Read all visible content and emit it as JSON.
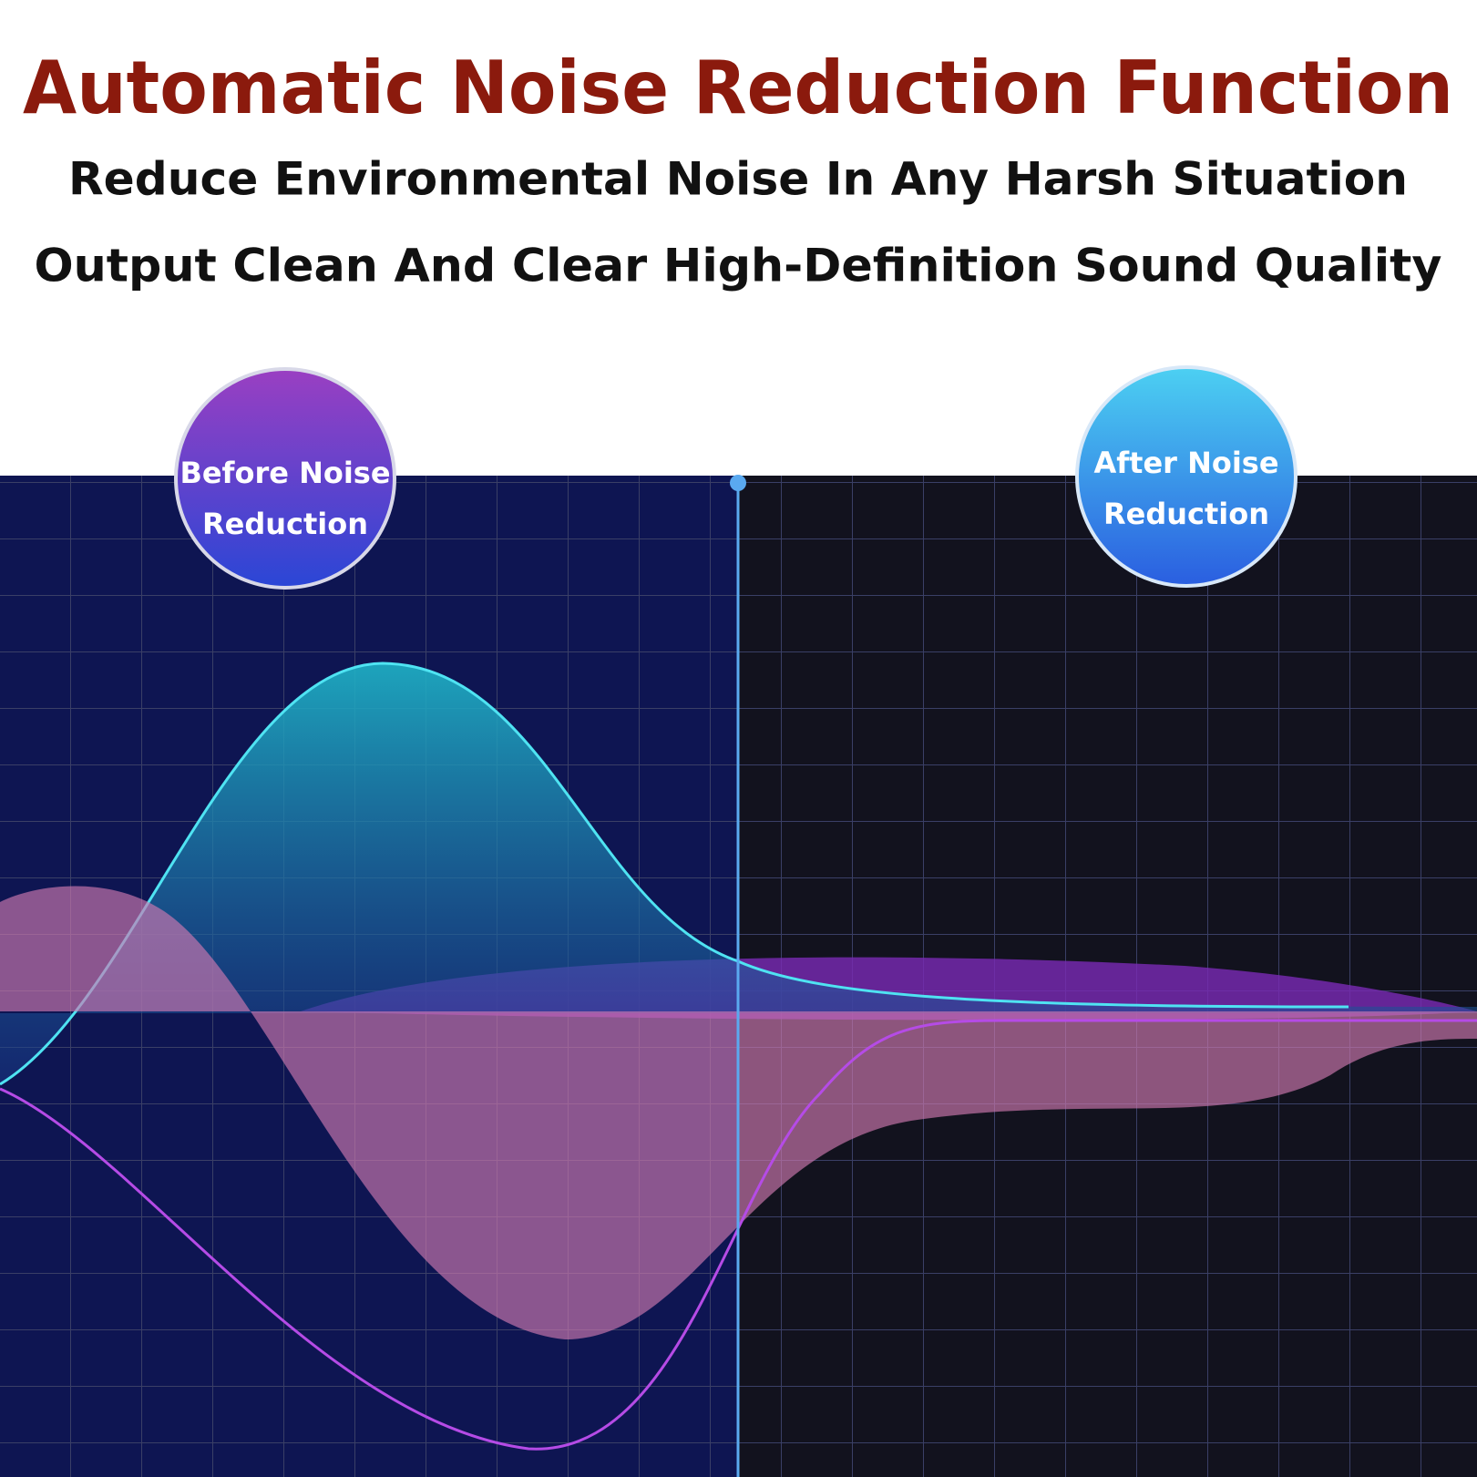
{
  "header": {
    "title": "Automatic Noise Reduction Function",
    "lines": [
      "Reduce Environmental Noise In Any Harsh Situation",
      "Output Clean And Clear High-Definition Sound Quality"
    ]
  },
  "badges": {
    "before": [
      "Before Noise",
      "Reduction"
    ],
    "after": [
      "After Noise",
      "Reduction"
    ]
  }
}
